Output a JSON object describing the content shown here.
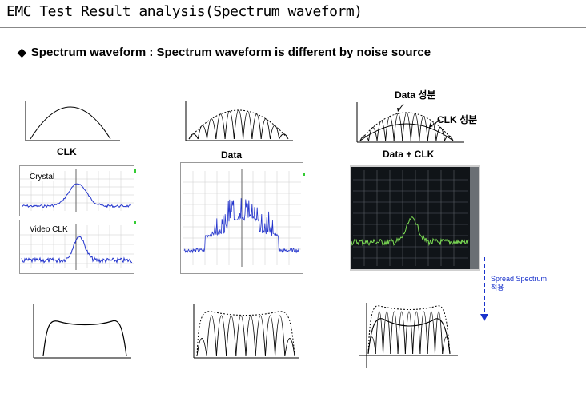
{
  "title": "EMC Test Result analysis(Spectrum waveform)",
  "subtitle": "Spectrum waveform : Spectrum waveform is different by noise source",
  "columns": [
    {
      "caption": "CLK"
    },
    {
      "caption": "Data"
    },
    {
      "caption": "Data + CLK"
    }
  ],
  "annotations": {
    "data_component": "Data 성분",
    "clk_component": "CLK 성분"
  },
  "scope_labels": {
    "crystal": "Crystal",
    "video_clk": "Video CLK"
  },
  "spread": {
    "line1": "Spread Spectrum",
    "line2": "적용"
  },
  "colors": {
    "trace_blue": "#2233cc",
    "trace_green": "#7dde55",
    "arrow_blue": "#1a33cc"
  }
}
